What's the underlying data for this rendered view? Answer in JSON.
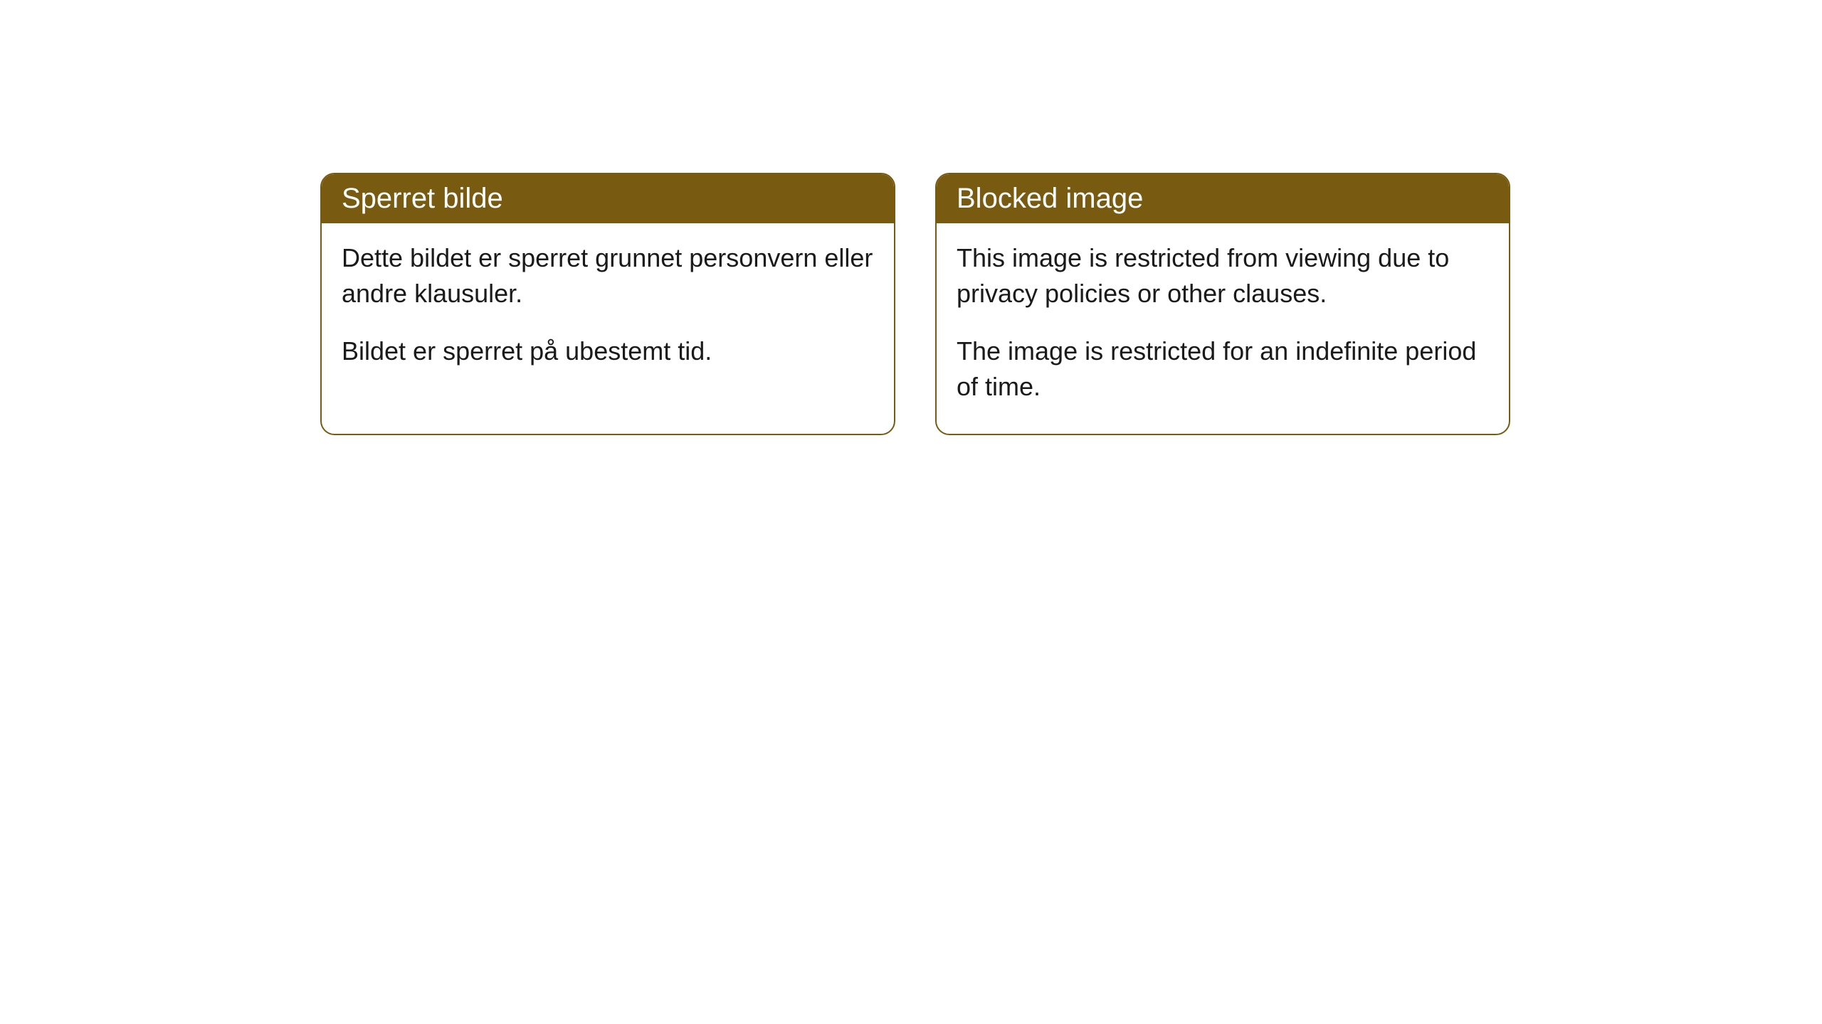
{
  "cards": [
    {
      "title": "Sperret bilde",
      "paragraph1": "Dette bildet er sperret grunnet personvern eller andre klausuler.",
      "paragraph2": "Bildet er sperret på ubestemt tid."
    },
    {
      "title": "Blocked image",
      "paragraph1": "This image is restricted from viewing due to privacy policies or other clauses.",
      "paragraph2": "The image is restricted for an indefinite period of time."
    }
  ],
  "styling": {
    "header_background": "#785b11",
    "header_text_color": "#ffffff",
    "border_color": "#785b11",
    "body_background": "#ffffff",
    "body_text_color": "#1a1a1a",
    "border_radius": 20,
    "title_fontsize": 40,
    "body_fontsize": 36
  }
}
